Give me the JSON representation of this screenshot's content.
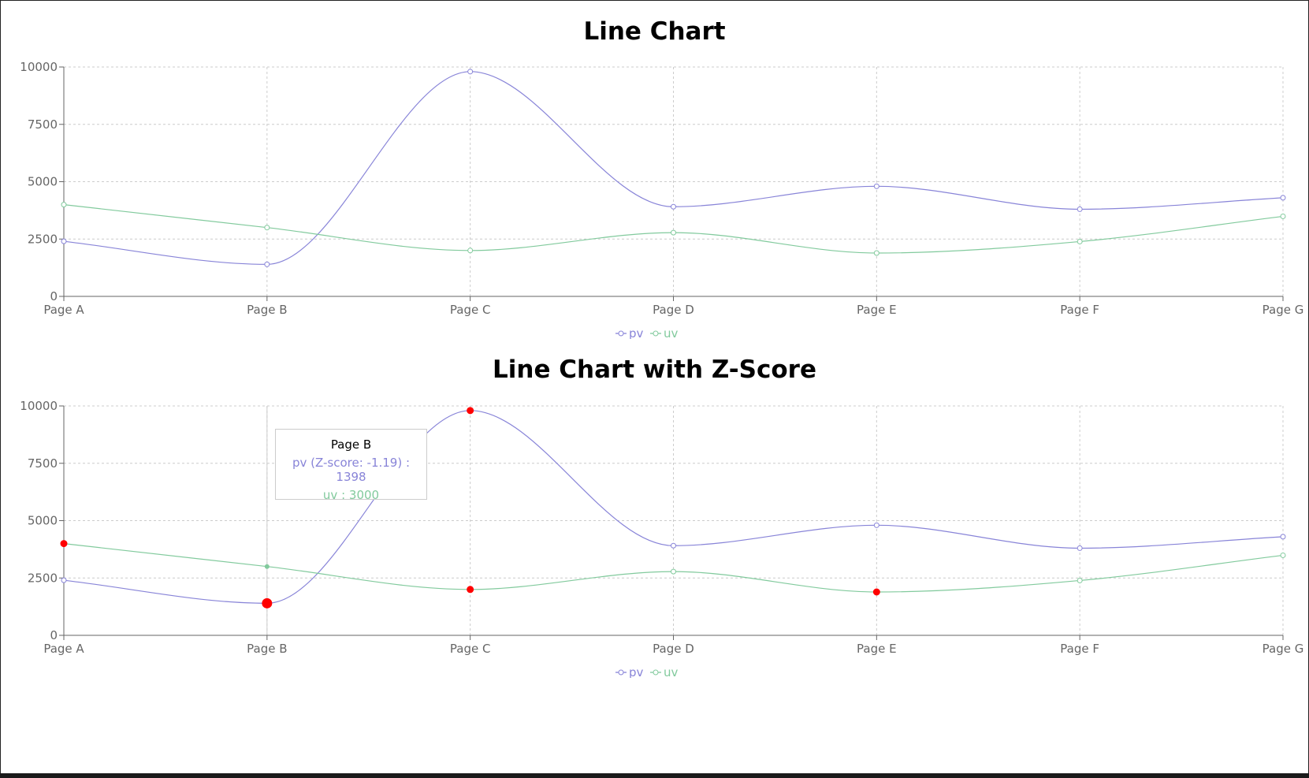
{
  "chart_data": [
    {
      "type": "line",
      "title": "Line Chart",
      "categories": [
        "Page A",
        "Page B",
        "Page C",
        "Page D",
        "Page E",
        "Page F",
        "Page G"
      ],
      "series": [
        {
          "name": "pv",
          "color": "#8884d8",
          "values": [
            2400,
            1398,
            9800,
            3908,
            4800,
            3800,
            4300
          ]
        },
        {
          "name": "uv",
          "color": "#82ca9d",
          "values": [
            4000,
            3000,
            2000,
            2780,
            1890,
            2390,
            3490
          ]
        }
      ],
      "ylim": [
        0,
        10000
      ],
      "yticks": [
        "0",
        "2500",
        "5000",
        "7500",
        "10000"
      ],
      "grid": true,
      "curve": "smooth",
      "legend": "bottom-center"
    },
    {
      "type": "line",
      "title": "Line Chart with Z-Score",
      "categories": [
        "Page A",
        "Page B",
        "Page C",
        "Page D",
        "Page E",
        "Page F",
        "Page G"
      ],
      "series": [
        {
          "name": "pv",
          "color": "#8884d8",
          "values": [
            2400,
            1398,
            9800,
            3908,
            4800,
            3800,
            4300
          ],
          "outlier_points": [
            "Page B",
            "Page C"
          ]
        },
        {
          "name": "uv",
          "color": "#82ca9d",
          "values": [
            4000,
            3000,
            2000,
            2780,
            1890,
            2390,
            3490
          ],
          "outlier_points": [
            "Page A",
            "Page C",
            "Page E"
          ]
        }
      ],
      "outlier_color": "#ff0000",
      "ylim": [
        0,
        10000
      ],
      "yticks": [
        "0",
        "2500",
        "5000",
        "7500",
        "10000"
      ],
      "grid": true,
      "curve": "smooth",
      "legend": "bottom-center",
      "active_category": "Page B",
      "tooltip": {
        "label": "Page B",
        "pv_text": "pv (Z-score: -1.19) : 1398",
        "uv_text": "uv : 3000"
      }
    }
  ]
}
